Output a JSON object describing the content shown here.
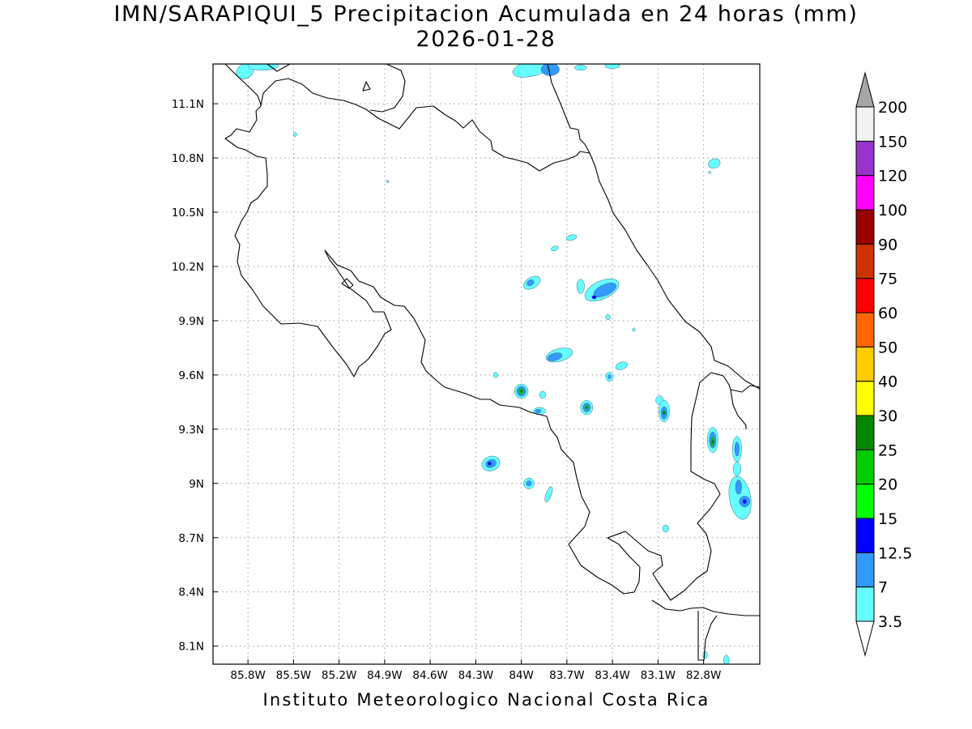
{
  "title": {
    "line1": "IMN/SARAPIQUI_5 Precipitacion Acumulada en 24 horas (mm)",
    "line2": "2026-01-28"
  },
  "credit": "Instituto Meteorologico Nacional Costa Rica",
  "map": {
    "lon_range": [
      -86.03,
      -82.43
    ],
    "lat_range": [
      8.0,
      11.32
    ],
    "grid": "dotted",
    "lon_ticks": [
      {
        "value": -85.8,
        "label": "85.8W"
      },
      {
        "value": -85.5,
        "label": "85.5W"
      },
      {
        "value": -85.2,
        "label": "85.2W"
      },
      {
        "value": -84.9,
        "label": "84.9W"
      },
      {
        "value": -84.6,
        "label": "84.6W"
      },
      {
        "value": -84.3,
        "label": "84.3W"
      },
      {
        "value": -84.0,
        "label": "84W"
      },
      {
        "value": -83.7,
        "label": "83.7W"
      },
      {
        "value": -83.4,
        "label": "83.4W"
      },
      {
        "value": -83.1,
        "label": "83.1W"
      },
      {
        "value": -82.8,
        "label": "82.8W"
      }
    ],
    "lat_ticks": [
      {
        "value": 11.1,
        "label": "11.1N"
      },
      {
        "value": 10.8,
        "label": "10.8N"
      },
      {
        "value": 10.5,
        "label": "10.5N"
      },
      {
        "value": 10.2,
        "label": "10.2N"
      },
      {
        "value": 9.9,
        "label": "9.9N"
      },
      {
        "value": 9.6,
        "label": "9.6N"
      },
      {
        "value": 9.3,
        "label": "9.3N"
      },
      {
        "value": 9.0,
        "label": "9N"
      },
      {
        "value": 8.7,
        "label": "8.7N"
      },
      {
        "value": 8.4,
        "label": "8.4N"
      },
      {
        "value": 8.1,
        "label": "8.1N"
      }
    ],
    "precip_cells": [
      {
        "lon": -85.82,
        "lat": 11.28,
        "rx": 0.06,
        "ry": 0.04,
        "rot": -30,
        "level": 0
      },
      {
        "lon": -85.7,
        "lat": 11.31,
        "rx": 0.1,
        "ry": 0.025,
        "rot": 0,
        "level": 0
      },
      {
        "lon": -85.49,
        "lat": 10.93,
        "rx": 0.01,
        "ry": 0.012,
        "rot": 0,
        "level": 0
      },
      {
        "lon": -83.92,
        "lat": 11.3,
        "rx": 0.14,
        "ry": 0.045,
        "rot": -15,
        "level": 0
      },
      {
        "lon": -83.81,
        "lat": 11.29,
        "rx": 0.06,
        "ry": 0.035,
        "rot": 0,
        "level": 1
      },
      {
        "lon": -83.61,
        "lat": 11.3,
        "rx": 0.04,
        "ry": 0.015,
        "rot": 0,
        "level": 0
      },
      {
        "lon": -83.4,
        "lat": 11.31,
        "rx": 0.05,
        "ry": 0.015,
        "rot": 0,
        "level": 0
      },
      {
        "lon": -82.73,
        "lat": 10.77,
        "rx": 0.04,
        "ry": 0.025,
        "rot": -20,
        "level": 0
      },
      {
        "lon": -83.67,
        "lat": 10.36,
        "rx": 0.035,
        "ry": 0.015,
        "rot": -15,
        "level": 0
      },
      {
        "lon": -83.78,
        "lat": 10.3,
        "rx": 0.025,
        "ry": 0.012,
        "rot": -20,
        "level": 0
      },
      {
        "lon": -83.93,
        "lat": 10.11,
        "rx": 0.06,
        "ry": 0.03,
        "rot": -30,
        "level": 0
      },
      {
        "lon": -83.94,
        "lat": 10.11,
        "rx": 0.025,
        "ry": 0.015,
        "rot": -30,
        "level": 1
      },
      {
        "lon": -83.61,
        "lat": 10.09,
        "rx": 0.025,
        "ry": 0.04,
        "rot": 0,
        "level": 0
      },
      {
        "lon": -83.47,
        "lat": 10.07,
        "rx": 0.12,
        "ry": 0.05,
        "rot": -25,
        "level": 0
      },
      {
        "lon": -83.45,
        "lat": 10.07,
        "rx": 0.08,
        "ry": 0.03,
        "rot": -25,
        "level": 1
      },
      {
        "lon": -83.52,
        "lat": 10.03,
        "rx": 0.015,
        "ry": 0.01,
        "rot": 0,
        "level": 2
      },
      {
        "lon": -83.43,
        "lat": 9.92,
        "rx": 0.015,
        "ry": 0.015,
        "rot": 0,
        "level": 0
      },
      {
        "lon": -83.26,
        "lat": 9.85,
        "rx": 0.007,
        "ry": 0.01,
        "rot": 0,
        "level": 0
      },
      {
        "lon": -83.75,
        "lat": 9.71,
        "rx": 0.09,
        "ry": 0.035,
        "rot": -15,
        "level": 0
      },
      {
        "lon": -83.78,
        "lat": 9.7,
        "rx": 0.05,
        "ry": 0.02,
        "rot": -15,
        "level": 1
      },
      {
        "lon": -83.34,
        "lat": 9.65,
        "rx": 0.04,
        "ry": 0.02,
        "rot": -20,
        "level": 0
      },
      {
        "lon": -83.42,
        "lat": 9.59,
        "rx": 0.025,
        "ry": 0.025,
        "rot": 0,
        "level": 0
      },
      {
        "lon": -83.42,
        "lat": 9.59,
        "rx": 0.01,
        "ry": 0.012,
        "rot": 0,
        "level": 1
      },
      {
        "lon": -84.17,
        "lat": 9.6,
        "rx": 0.015,
        "ry": 0.015,
        "rot": 0,
        "level": 0
      },
      {
        "lon": -84.0,
        "lat": 9.51,
        "rx": 0.045,
        "ry": 0.04,
        "rot": 0,
        "level": 0
      },
      {
        "lon": -84.0,
        "lat": 9.51,
        "rx": 0.03,
        "ry": 0.028,
        "rot": 0,
        "level": 1
      },
      {
        "lon": -84.0,
        "lat": 9.51,
        "rx": 0.018,
        "ry": 0.016,
        "rot": 0,
        "level": 4
      },
      {
        "lon": -84.0,
        "lat": 9.51,
        "rx": 0.008,
        "ry": 0.007,
        "rot": 0,
        "level": 5
      },
      {
        "lon": -83.86,
        "lat": 9.49,
        "rx": 0.02,
        "ry": 0.02,
        "rot": 0,
        "level": 0
      },
      {
        "lon": -83.88,
        "lat": 9.4,
        "rx": 0.04,
        "ry": 0.02,
        "rot": 0,
        "level": 0
      },
      {
        "lon": -83.89,
        "lat": 9.4,
        "rx": 0.02,
        "ry": 0.01,
        "rot": 0,
        "level": 1
      },
      {
        "lon": -83.57,
        "lat": 9.42,
        "rx": 0.04,
        "ry": 0.04,
        "rot": 0,
        "level": 0
      },
      {
        "lon": -83.57,
        "lat": 9.42,
        "rx": 0.025,
        "ry": 0.025,
        "rot": 0,
        "level": 1
      },
      {
        "lon": -83.57,
        "lat": 9.42,
        "rx": 0.013,
        "ry": 0.013,
        "rot": 0,
        "level": 3
      },
      {
        "lon": -83.57,
        "lat": 9.42,
        "rx": 0.006,
        "ry": 0.006,
        "rot": 0,
        "level": 5
      },
      {
        "lon": -83.09,
        "lat": 9.46,
        "rx": 0.025,
        "ry": 0.025,
        "rot": 0,
        "level": 0
      },
      {
        "lon": -83.06,
        "lat": 9.4,
        "rx": 0.035,
        "ry": 0.06,
        "rot": 0,
        "level": 0
      },
      {
        "lon": -83.06,
        "lat": 9.39,
        "rx": 0.02,
        "ry": 0.035,
        "rot": 0,
        "level": 1
      },
      {
        "lon": -83.06,
        "lat": 9.39,
        "rx": 0.008,
        "ry": 0.012,
        "rot": 0,
        "level": 5
      },
      {
        "lon": -82.74,
        "lat": 9.24,
        "rx": 0.035,
        "ry": 0.07,
        "rot": 0,
        "level": 0
      },
      {
        "lon": -82.74,
        "lat": 9.24,
        "rx": 0.022,
        "ry": 0.045,
        "rot": 0,
        "level": 1
      },
      {
        "lon": -82.74,
        "lat": 9.23,
        "rx": 0.012,
        "ry": 0.025,
        "rot": 0,
        "level": 4
      },
      {
        "lon": -82.74,
        "lat": 9.23,
        "rx": 0.005,
        "ry": 0.01,
        "rot": 0,
        "level": 5
      },
      {
        "lon": -82.58,
        "lat": 9.19,
        "rx": 0.03,
        "ry": 0.07,
        "rot": 0,
        "level": 0
      },
      {
        "lon": -82.58,
        "lat": 9.19,
        "rx": 0.015,
        "ry": 0.04,
        "rot": 0,
        "level": 1
      },
      {
        "lon": -82.58,
        "lat": 9.08,
        "rx": 0.025,
        "ry": 0.04,
        "rot": 0,
        "level": 0
      },
      {
        "lon": -82.56,
        "lat": 8.92,
        "rx": 0.07,
        "ry": 0.12,
        "rot": -10,
        "level": 0
      },
      {
        "lon": -82.57,
        "lat": 8.98,
        "rx": 0.02,
        "ry": 0.04,
        "rot": 0,
        "level": 1
      },
      {
        "lon": -82.53,
        "lat": 8.9,
        "rx": 0.035,
        "ry": 0.03,
        "rot": 0,
        "level": 1
      },
      {
        "lon": -82.53,
        "lat": 8.9,
        "rx": 0.012,
        "ry": 0.012,
        "rot": 0,
        "level": 2
      },
      {
        "lon": -84.2,
        "lat": 9.11,
        "rx": 0.06,
        "ry": 0.04,
        "rot": -20,
        "level": 0
      },
      {
        "lon": -84.2,
        "lat": 9.11,
        "rx": 0.035,
        "ry": 0.022,
        "rot": -20,
        "level": 1
      },
      {
        "lon": -84.21,
        "lat": 9.11,
        "rx": 0.012,
        "ry": 0.01,
        "rot": 0,
        "level": 2
      },
      {
        "lon": -83.95,
        "lat": 9.0,
        "rx": 0.035,
        "ry": 0.03,
        "rot": 0,
        "level": 0
      },
      {
        "lon": -83.95,
        "lat": 9.0,
        "rx": 0.018,
        "ry": 0.015,
        "rot": 0,
        "level": 1
      },
      {
        "lon": -83.82,
        "lat": 8.94,
        "rx": 0.018,
        "ry": 0.045,
        "rot": 20,
        "level": 0
      },
      {
        "lon": -83.05,
        "lat": 8.75,
        "rx": 0.02,
        "ry": 0.02,
        "rot": 0,
        "level": 0
      },
      {
        "lon": -82.79,
        "lat": 8.05,
        "rx": 0.015,
        "ry": 0.02,
        "rot": 0,
        "level": 0
      },
      {
        "lon": -82.65,
        "lat": 8.02,
        "rx": 0.018,
        "ry": 0.03,
        "rot": 0,
        "level": 0
      },
      {
        "lon": -84.88,
        "lat": 10.67,
        "rx": 0.005,
        "ry": 0.005,
        "rot": 0,
        "level": 0
      },
      {
        "lon": -82.76,
        "lat": 10.72,
        "rx": 0.005,
        "ry": 0.005,
        "rot": 0,
        "level": 0
      }
    ]
  },
  "colorbar": {
    "levels": [
      {
        "label": "3.5",
        "color": "#66ffff"
      },
      {
        "label": "7",
        "color": "#3399ff"
      },
      {
        "label": "12.5",
        "color": "#0000ff"
      },
      {
        "label": "15",
        "color": "#00ff00"
      },
      {
        "label": "20",
        "color": "#00cc00"
      },
      {
        "label": "25",
        "color": "#008800"
      },
      {
        "label": "30",
        "color": "#ffff00"
      },
      {
        "label": "40",
        "color": "#ffcc00"
      },
      {
        "label": "50",
        "color": "#ff6600"
      },
      {
        "label": "60",
        "color": "#ff0000"
      },
      {
        "label": "75",
        "color": "#cc3300"
      },
      {
        "label": "90",
        "color": "#990000"
      },
      {
        "label": "100",
        "color": "#ff00ff"
      },
      {
        "label": "120",
        "color": "#9933cc"
      },
      {
        "label": "150",
        "color": "#f2f2f2"
      },
      {
        "label": "200",
        "color": ""
      }
    ],
    "top_arrow_color": "#a6a6a6",
    "bottom_arrow_color": "#ffffff"
  }
}
